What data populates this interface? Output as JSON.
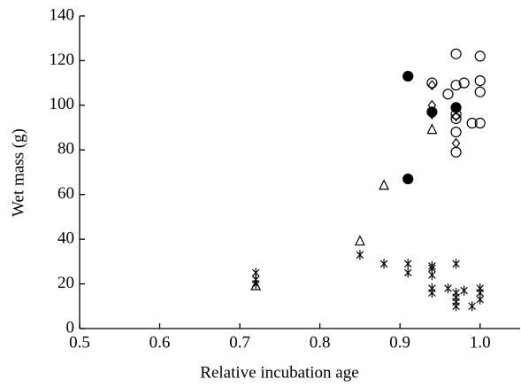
{
  "chart_data": {
    "type": "scatter",
    "x_label": "Relative incubation age",
    "y_label": "Wet mass (g)",
    "xlim": [
      0.5,
      1.05
    ],
    "ylim": [
      0,
      140
    ],
    "xticks": [
      0.5,
      0.6,
      0.7,
      0.8,
      0.9,
      {
        "value": 1,
        "label": "1.0"
      }
    ],
    "yticks": [
      0,
      20,
      40,
      60,
      80,
      100,
      120,
      140
    ],
    "series": [
      {
        "marker": "circle-open",
        "color": "#000",
        "x": [
          0.97,
          1.0,
          0.94,
          0.97,
          0.98,
          1.0,
          0.96,
          1.0,
          0.97,
          0.97,
          0.97,
          0.99,
          1.0,
          0.97
        ],
        "values": [
          123,
          122,
          110,
          109,
          110,
          111,
          105,
          106,
          96,
          94,
          88,
          92,
          92,
          79
        ]
      },
      {
        "marker": "circle-filled",
        "color": "#000",
        "x": [
          0.91,
          0.94,
          0.97,
          0.91
        ],
        "values": [
          113,
          97,
          99,
          67
        ]
      },
      {
        "marker": "diamond-open",
        "color": "#000",
        "x": [
          0.94,
          0.94,
          0.94,
          0.97,
          0.97
        ],
        "values": [
          109,
          100,
          96,
          95,
          83
        ]
      },
      {
        "marker": "triangle-open",
        "color": "#000",
        "x": [
          0.72,
          0.85,
          0.88,
          0.94
        ],
        "values": [
          19,
          39,
          64,
          89
        ]
      },
      {
        "marker": "asterisk",
        "color": "#000",
        "x": [
          0.72,
          0.72,
          0.72,
          0.85,
          0.88,
          0.91,
          0.91,
          0.94,
          0.94,
          0.94,
          0.94,
          0.94,
          0.96,
          0.97,
          0.97,
          0.97,
          0.97,
          0.97,
          0.98,
          0.99,
          1.0,
          1.0,
          1.0
        ],
        "values": [
          25,
          22,
          20,
          33,
          29,
          29,
          25,
          28,
          27,
          24,
          18,
          16,
          18,
          29,
          16,
          14,
          12,
          10,
          17,
          10,
          18,
          16,
          13
        ]
      }
    ]
  }
}
